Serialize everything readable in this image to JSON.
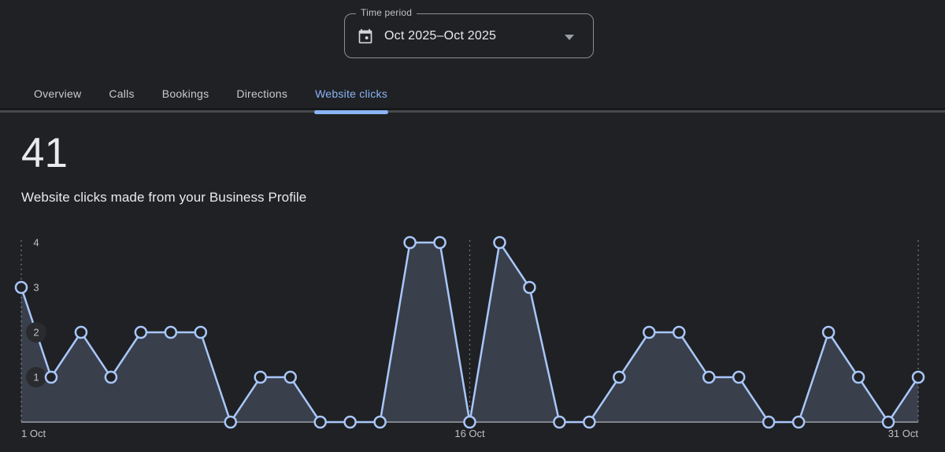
{
  "time_period": {
    "label": "Time period",
    "value": "Oct 2025–Oct 2025"
  },
  "tabs": [
    {
      "label": "Overview",
      "active": false
    },
    {
      "label": "Calls",
      "active": false
    },
    {
      "label": "Bookings",
      "active": false
    },
    {
      "label": "Directions",
      "active": false
    },
    {
      "label": "Website clicks",
      "active": true
    }
  ],
  "metric": {
    "value": "41",
    "description": "Website clicks made from your Business Profile"
  },
  "chart_data": {
    "type": "area",
    "title": "",
    "x_unit": "day of October 2025",
    "x": [
      1,
      2,
      3,
      4,
      5,
      6,
      7,
      8,
      9,
      10,
      11,
      12,
      13,
      14,
      15,
      16,
      17,
      18,
      19,
      20,
      21,
      22,
      23,
      24,
      25,
      26,
      27,
      28,
      29,
      30,
      31
    ],
    "values": [
      3,
      1,
      2,
      1,
      2,
      2,
      2,
      0,
      1,
      1,
      0,
      0,
      0,
      4,
      4,
      0,
      4,
      3,
      0,
      0,
      1,
      2,
      2,
      1,
      1,
      0,
      0,
      2,
      1,
      0,
      1
    ],
    "total": 41,
    "ylim": [
      0,
      4.5
    ],
    "yticks": [
      4,
      3,
      2,
      1
    ],
    "xticks": [
      {
        "day": 1,
        "label": "1 Oct"
      },
      {
        "day": 16,
        "label": "16 Oct"
      },
      {
        "day": 31,
        "label": "31 Oct"
      }
    ],
    "grid": "dashed vertical lines at xticks",
    "legend": "none",
    "colors": {
      "line": "#a8c7fa",
      "fill": "rgba(168,199,250,0.19)",
      "point_fill": "#202124",
      "axis_line": "#9aa0a6",
      "grid_line": "#75797d",
      "tick_text": "#bdc1c6",
      "tick_badge": "#2a2b2e"
    }
  },
  "theme": {
    "background": "#202124",
    "text_primary": "#e8eaed",
    "text_secondary": "#bdc1c6",
    "accent_blue": "#8ab4f8",
    "divider": "#47494d"
  }
}
